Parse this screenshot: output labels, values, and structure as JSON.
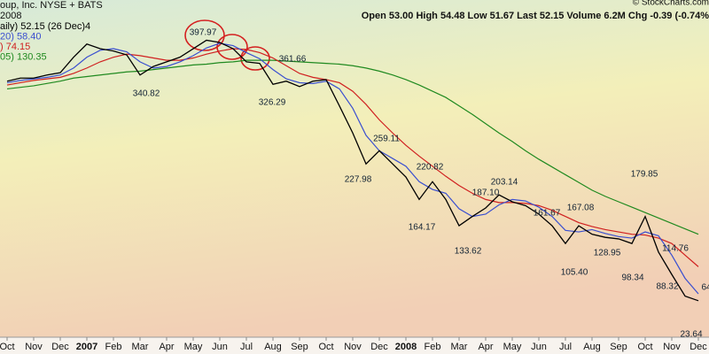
{
  "chart_data": {
    "type": "line",
    "title": "oup, Inc. NYSE + BATS",
    "subtitle": "2008",
    "quote": "Open 53.00 High 54.48 Low 51.67 Last 52.15 Volume 6.2M Chg -0.39 (-0.74%",
    "credit": "© StockCharts.com",
    "categories": [
      "Oct",
      null,
      "Nov",
      null,
      "Dec",
      null,
      "2007",
      null,
      "Feb",
      null,
      "Mar",
      null,
      "Apr",
      null,
      "May",
      null,
      "Jun",
      null,
      "Jul",
      null,
      "Aug",
      null,
      "Sep",
      null,
      "Oct",
      null,
      "Nov",
      null,
      "Dec",
      null,
      "2008",
      null,
      "Feb",
      null,
      "Mar",
      null,
      "Apr",
      null,
      "May",
      null,
      "Jun",
      null,
      "Jul",
      null,
      "Aug",
      null,
      "Sep",
      null,
      "Oct",
      null,
      "Nov",
      null,
      "Dec"
    ],
    "ylim": [
      5,
      440
    ],
    "series": [
      {
        "name": "aily) 52.15 (26 Dec)4",
        "color": "#000000",
        "values": [
          335,
          339,
          339,
          343,
          346,
          366,
          383,
          377,
          374,
          369,
          343,
          354,
          360,
          366,
          377,
          388,
          385,
          377,
          360,
          358,
          331,
          335,
          328,
          335,
          337,
          303,
          268,
          228,
          245,
          228,
          211,
          182,
          205,
          182,
          148,
          160,
          171,
          188,
          179,
          174,
          163,
          148,
          125,
          148,
          137,
          133,
          131,
          125,
          160,
          114,
          85,
          57,
          51
        ]
      },
      {
        "name": "20) 58.40",
        "color": "#3a4fd0",
        "values": [
          333,
          336,
          338,
          340,
          343,
          352,
          366,
          375,
          377,
          373,
          360,
          352,
          354,
          360,
          368,
          378,
          384,
          381,
          372,
          364,
          350,
          338,
          333,
          332,
          335,
          325,
          300,
          265,
          245,
          235,
          225,
          205,
          195,
          190,
          170,
          160,
          163,
          175,
          182,
          180,
          172,
          160,
          142,
          140,
          143,
          138,
          134,
          132,
          140,
          135,
          110,
          80,
          60
        ]
      },
      {
        "name": ") 74.15",
        "color": "#d02020",
        "values": [
          330,
          333,
          336,
          338,
          340,
          345,
          352,
          360,
          366,
          370,
          368,
          365,
          362,
          362,
          365,
          370,
          374,
          377,
          376,
          372,
          365,
          355,
          345,
          340,
          337,
          333,
          322,
          305,
          285,
          268,
          252,
          238,
          225,
          212,
          200,
          190,
          182,
          178,
          178,
          177,
          174,
          168,
          160,
          152,
          147,
          143,
          140,
          137,
          136,
          132,
          125,
          110,
          95
        ]
      },
      {
        "name": "05) 130.35",
        "color": "#208a20",
        "values": [
          325,
          327,
          329,
          332,
          335,
          339,
          341,
          343,
          345,
          347,
          348,
          350,
          352,
          354,
          356,
          357,
          359,
          360,
          362,
          362,
          362,
          361,
          360,
          359,
          358,
          357,
          355,
          352,
          348,
          343,
          337,
          330,
          322,
          314,
          303,
          292,
          280,
          268,
          257,
          245,
          234,
          224,
          214,
          204,
          194,
          186,
          179,
          172,
          165,
          158,
          151,
          144,
          137
        ]
      }
    ],
    "annotations": [
      "397.97",
      "361.66",
      "340.82",
      "326.29",
      "259.11",
      "227.98",
      "220.82",
      "187.10",
      "203.14",
      "164.17",
      "133.62",
      "161.67",
      "167.08",
      "179.85",
      "105.40",
      "128.95",
      "98.34",
      "114.76",
      "88.32",
      "23.64",
      "64"
    ]
  }
}
